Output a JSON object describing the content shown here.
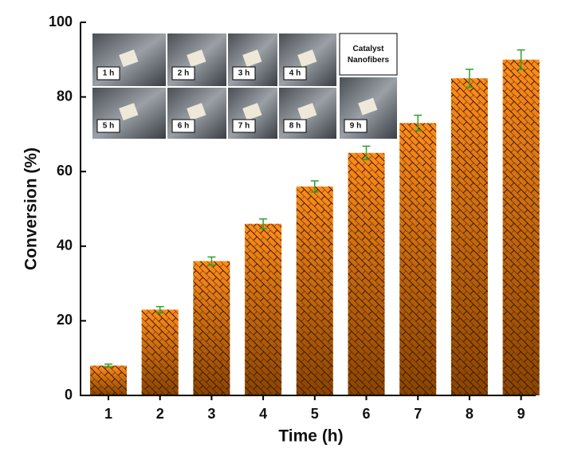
{
  "chart_data": {
    "type": "bar",
    "x_label": "Time (h)",
    "y_label": "Conversion (%)",
    "categories": [
      "1",
      "2",
      "3",
      "4",
      "5",
      "6",
      "7",
      "8",
      "9"
    ],
    "values": [
      8,
      23,
      36,
      46,
      56,
      65,
      73,
      85,
      90
    ],
    "errors": [
      0.4,
      0.8,
      1.1,
      1.3,
      1.5,
      1.8,
      2.1,
      2.4,
      2.6
    ],
    "color": "#ff8c1a",
    "error_color": "#2ca02c",
    "ylim": [
      0,
      100
    ],
    "yticks": [
      0,
      20,
      40,
      60,
      80,
      100
    ],
    "inset_labels": [
      "1 h",
      "2 h",
      "3 h",
      "4 h",
      "5 h",
      "6 h",
      "7 h",
      "8 h",
      "Catalyst Nanofibers",
      "9 h"
    ]
  }
}
